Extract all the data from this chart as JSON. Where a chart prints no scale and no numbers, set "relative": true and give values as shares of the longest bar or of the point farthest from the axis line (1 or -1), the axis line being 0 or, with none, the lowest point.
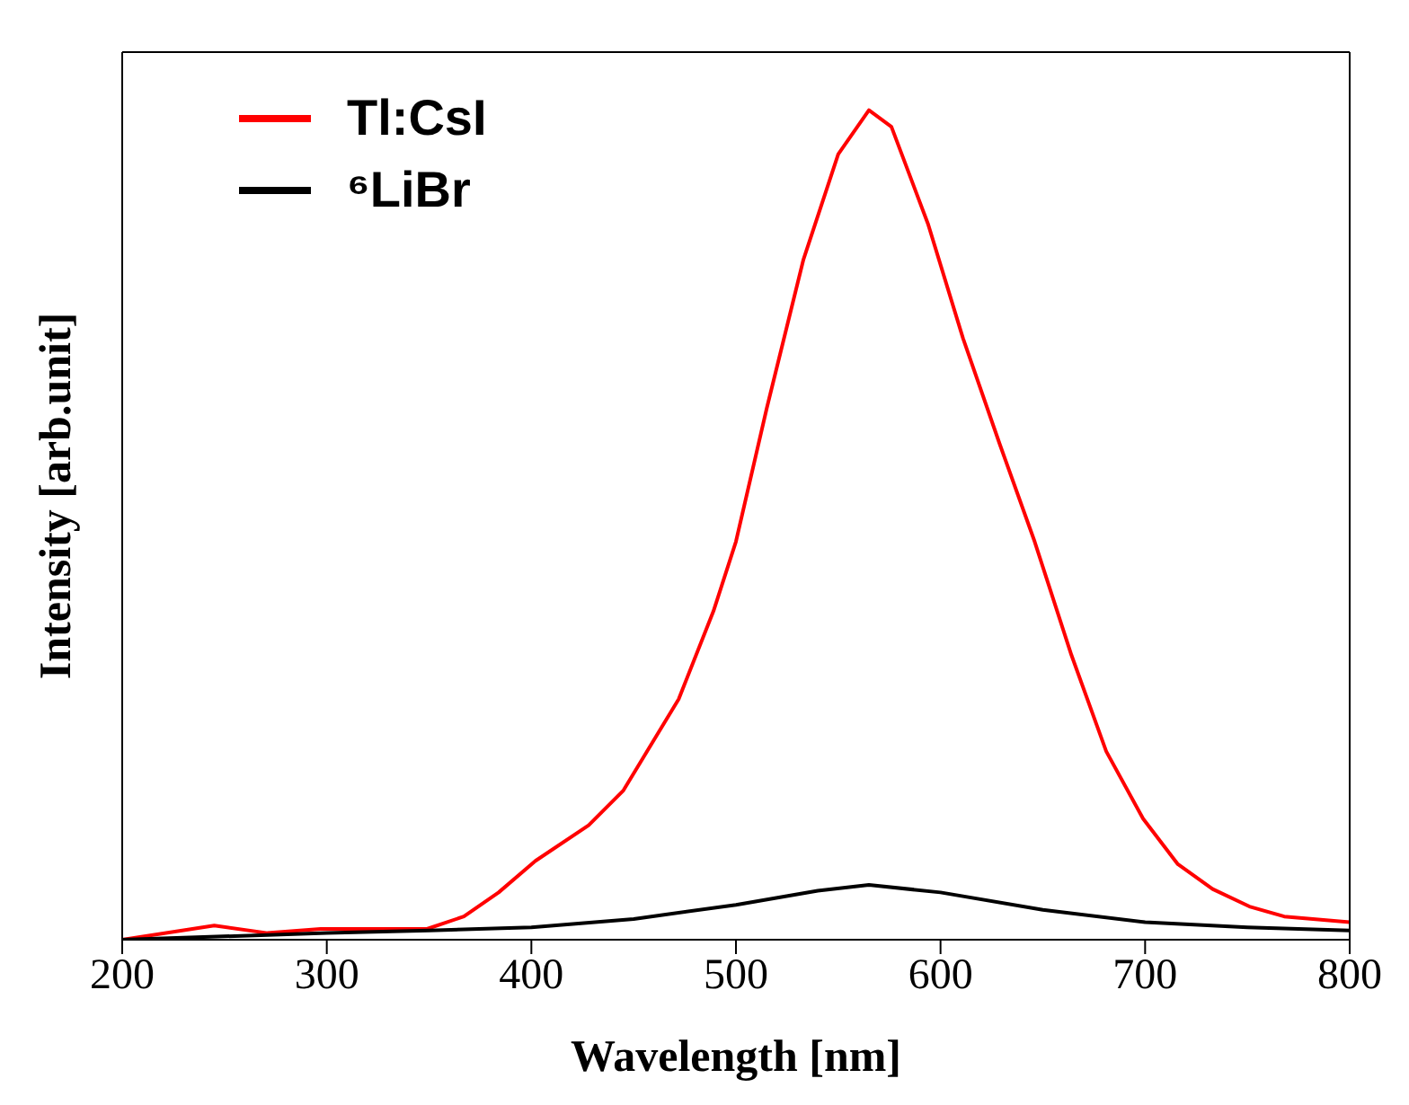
{
  "chart_data": {
    "type": "line",
    "relative": true,
    "xlabel": "Wavelength [nm]",
    "ylabel": "Intensity [arb.unit]",
    "xlim": [
      200,
      800
    ],
    "xticks": [
      200,
      300,
      400,
      500,
      600,
      700,
      800
    ],
    "legend": "top left",
    "marker": "none",
    "line_style": "solid",
    "grid": false,
    "series": [
      {
        "name": "Tl:CsI",
        "color": "#ff0000",
        "x": [
          200,
          245,
          271,
          297,
          349,
          367,
          384,
          402,
          428,
          445,
          472,
          489,
          500,
          515,
          533,
          550,
          565,
          576,
          594,
          611,
          629,
          646,
          664,
          681,
          699,
          716,
          733,
          751,
          768,
          800
        ],
        "values": [
          0,
          0.017,
          0.008,
          0.013,
          0.013,
          0.028,
          0.057,
          0.095,
          0.138,
          0.18,
          0.29,
          0.396,
          0.48,
          0.64,
          0.82,
          0.947,
          1,
          0.98,
          0.862,
          0.725,
          0.597,
          0.48,
          0.343,
          0.227,
          0.146,
          0.091,
          0.061,
          0.04,
          0.028,
          0.021
        ]
      },
      {
        "name": "⁶LiBr",
        "color": "#000000",
        "x": [
          200,
          300,
          350,
          400,
          450,
          500,
          540,
          565,
          600,
          650,
          700,
          750,
          800
        ],
        "values": [
          0,
          0.008,
          0.011,
          0.015,
          0.025,
          0.042,
          0.059,
          0.066,
          0.057,
          0.036,
          0.021,
          0.015,
          0.011
        ]
      }
    ]
  }
}
